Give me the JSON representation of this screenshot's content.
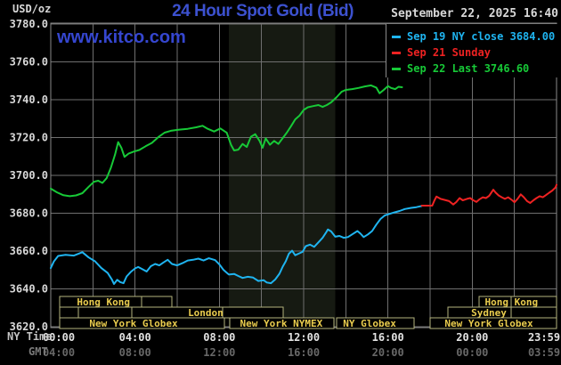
{
  "header": {
    "unit_label": "USD/oz",
    "title": "24 Hour Spot Gold (Bid)",
    "timestamp": "September 22, 2025 16:40",
    "watermark": "www.kitco.com",
    "legend": [
      {
        "label": "Sep 19 NY close 3684.00",
        "color": "#1fb4f0"
      },
      {
        "label": "Sep 21 Sunday",
        "color": "#ee2222"
      },
      {
        "label": "Sep 22 Last 3746.60",
        "color": "#17c937"
      }
    ]
  },
  "axes": {
    "y": {
      "ticks": [
        {
          "value": 3780,
          "label": "3780.0"
        },
        {
          "value": 3760,
          "label": "3760.0"
        },
        {
          "value": 3740,
          "label": "3740.0"
        },
        {
          "value": 3720,
          "label": "3720.0"
        },
        {
          "value": 3700,
          "label": "3700.0"
        },
        {
          "value": 3680,
          "label": "3680.0"
        },
        {
          "value": 3660,
          "label": "3660.0"
        },
        {
          "value": 3640,
          "label": "3640.0"
        },
        {
          "value": 3620,
          "label": "3620.0"
        }
      ],
      "color": "#d8d8d8"
    },
    "x_ny": {
      "axis_label": "NY Time",
      "color": "#e2e2e2",
      "ticks": [
        {
          "hour": 0,
          "label": "00:00"
        },
        {
          "hour": 4,
          "label": "04:00"
        },
        {
          "hour": 8,
          "label": "08:00"
        },
        {
          "hour": 12,
          "label": "12:00"
        },
        {
          "hour": 16,
          "label": "16:00"
        },
        {
          "hour": 20,
          "label": "20:00"
        },
        {
          "hour": 23.98,
          "label": "23:59"
        }
      ]
    },
    "x_gmt": {
      "axis_label": "GMT",
      "color": "#686868",
      "ticks": [
        {
          "hour": 0,
          "label": "04:00"
        },
        {
          "hour": 4,
          "label": "08:00"
        },
        {
          "hour": 8,
          "label": "12:00"
        },
        {
          "hour": 12,
          "label": "16:00"
        },
        {
          "hour": 16,
          "label": "20:00"
        },
        {
          "hour": 20,
          "label": "00:00"
        },
        {
          "hour": 23.98,
          "label": "03:59"
        }
      ]
    }
  },
  "sessions": {
    "border_color": "#b4b47e",
    "label_color": "#eacd4e",
    "rows": [
      {
        "boxes": [
          {
            "start_hour": 0.42,
            "end_hour": 5.75,
            "label": "Hong Kong",
            "label_center_hour": 2.5,
            "dividers": [
              4.31
            ]
          },
          {
            "start_hour": 20.32,
            "end_hour": 24,
            "label": "Hong Kong",
            "label_center_hour": 21.86,
            "dividers": [
              21.84
            ]
          }
        ]
      },
      {
        "boxes": [
          {
            "start_hour": 0.42,
            "end_hour": 1.31,
            "label": "",
            "label_center_hour": 0,
            "dividers": []
          },
          {
            "start_hour": 1.31,
            "end_hour": 3.84,
            "label": "",
            "label_center_hour": 0,
            "dividers": []
          },
          {
            "start_hour": 3.84,
            "end_hour": 11.03,
            "label": "London",
            "label_center_hour": 7.35,
            "dividers": [
              8.15
            ]
          },
          {
            "start_hour": 18.84,
            "end_hour": 24,
            "label": "Sydney",
            "label_center_hour": 20.79,
            "dividers": [
              21.84
            ]
          }
        ]
      },
      {
        "boxes": [
          {
            "start_hour": 0.42,
            "end_hour": 8.24,
            "label": "New York Globex",
            "label_center_hour": 3.93,
            "dividers": []
          },
          {
            "start_hour": 8.49,
            "end_hour": 13.43,
            "label": "New York NYMEX",
            "label_center_hour": 10.94,
            "dividers": []
          },
          {
            "start_hour": 13.56,
            "end_hour": 17.24,
            "label": "NY Globex",
            "label_center_hour": 15.13,
            "dividers": []
          },
          {
            "start_hour": 18.0,
            "end_hour": 24,
            "label": "New York Globex",
            "label_center_hour": 20.79,
            "dividers": []
          }
        ]
      }
    ]
  },
  "chart_data": {
    "type": "line",
    "title": "24 Hour Spot Gold (Bid)",
    "ylabel": "USD/oz",
    "x_unit": "hour of day, NY time",
    "xlim": [
      0,
      24
    ],
    "ylim": [
      3620,
      3780
    ],
    "y_gridline_step": 20,
    "x_gridline_step_hours": 2,
    "grid_color": "#6f6f6f",
    "session_shading": {
      "start_hour": 8.45,
      "end_hour": 13.5,
      "color": "#161a12"
    },
    "series": [
      {
        "name": "Sep 19 NY close 3684.00",
        "color": "#1fb4f0",
        "points": [
          [
            0,
            3651
          ],
          [
            0.15,
            3654.5
          ],
          [
            0.35,
            3657.4
          ],
          [
            0.7,
            3658
          ],
          [
            1.1,
            3657.6
          ],
          [
            1.5,
            3659.4
          ],
          [
            1.8,
            3656.6
          ],
          [
            2.1,
            3654.6
          ],
          [
            2.4,
            3651
          ],
          [
            2.7,
            3648.4
          ],
          [
            2.9,
            3645
          ],
          [
            3.0,
            3642.6
          ],
          [
            3.15,
            3644.8
          ],
          [
            3.3,
            3643.6
          ],
          [
            3.45,
            3643
          ],
          [
            3.6,
            3646.6
          ],
          [
            3.8,
            3649
          ],
          [
            4,
            3650.8
          ],
          [
            4.15,
            3651.6
          ],
          [
            4.35,
            3650.4
          ],
          [
            4.55,
            3649.2
          ],
          [
            4.75,
            3652
          ],
          [
            4.95,
            3653.2
          ],
          [
            5.15,
            3652.4
          ],
          [
            5.35,
            3654
          ],
          [
            5.55,
            3655.4
          ],
          [
            5.75,
            3653.2
          ],
          [
            6,
            3652.4
          ],
          [
            6.25,
            3653.6
          ],
          [
            6.5,
            3655
          ],
          [
            6.75,
            3655.4
          ],
          [
            7,
            3656
          ],
          [
            7.25,
            3655
          ],
          [
            7.5,
            3656.2
          ],
          [
            7.8,
            3655.2
          ],
          [
            8,
            3653
          ],
          [
            8.2,
            3650
          ],
          [
            8.45,
            3647.6
          ],
          [
            8.7,
            3647.9
          ],
          [
            8.9,
            3646.8
          ],
          [
            9.1,
            3645.8
          ],
          [
            9.35,
            3646.4
          ],
          [
            9.6,
            3646
          ],
          [
            9.85,
            3644.2
          ],
          [
            10.1,
            3644.6
          ],
          [
            10.25,
            3643.4
          ],
          [
            10.45,
            3643
          ],
          [
            10.65,
            3645
          ],
          [
            10.85,
            3648
          ],
          [
            11,
            3651.6
          ],
          [
            11.15,
            3654.6
          ],
          [
            11.3,
            3658.6
          ],
          [
            11.45,
            3660.2
          ],
          [
            11.6,
            3657.8
          ],
          [
            11.8,
            3658.8
          ],
          [
            11.95,
            3659.6
          ],
          [
            12.1,
            3662.6
          ],
          [
            12.3,
            3663.4
          ],
          [
            12.5,
            3662.2
          ],
          [
            12.7,
            3664.6
          ],
          [
            12.9,
            3667
          ],
          [
            13.05,
            3669.6
          ],
          [
            13.15,
            3671.4
          ],
          [
            13.3,
            3670.4
          ],
          [
            13.5,
            3667.6
          ],
          [
            13.7,
            3668
          ],
          [
            13.9,
            3667
          ],
          [
            14.1,
            3667.4
          ],
          [
            14.3,
            3668.8
          ],
          [
            14.55,
            3670.6
          ],
          [
            14.7,
            3669.2
          ],
          [
            14.85,
            3667.4
          ],
          [
            15.05,
            3668.8
          ],
          [
            15.25,
            3670.6
          ],
          [
            15.45,
            3674
          ],
          [
            15.65,
            3677
          ],
          [
            15.85,
            3678.8
          ],
          [
            16.05,
            3679.6
          ],
          [
            16.3,
            3680.4
          ],
          [
            16.55,
            3681.2
          ],
          [
            16.8,
            3682.2
          ],
          [
            17.1,
            3682.8
          ],
          [
            17.35,
            3683.2
          ],
          [
            17.6,
            3683.8
          ]
        ]
      },
      {
        "name": "Sep 21 Sunday",
        "color": "#ee2222",
        "points": [
          [
            17.6,
            3684
          ],
          [
            18.1,
            3684
          ],
          [
            18.2,
            3686.6
          ],
          [
            18.3,
            3688.8
          ],
          [
            18.5,
            3687.6
          ],
          [
            18.7,
            3687
          ],
          [
            18.9,
            3686.4
          ],
          [
            19.1,
            3684.6
          ],
          [
            19.25,
            3686
          ],
          [
            19.4,
            3688
          ],
          [
            19.55,
            3686.8
          ],
          [
            19.75,
            3687.6
          ],
          [
            19.9,
            3688
          ],
          [
            20.05,
            3686.8
          ],
          [
            20.2,
            3686
          ],
          [
            20.35,
            3687.4
          ],
          [
            20.5,
            3688.4
          ],
          [
            20.65,
            3688
          ],
          [
            20.8,
            3689.2
          ],
          [
            21,
            3692.4
          ],
          [
            21.1,
            3691
          ],
          [
            21.25,
            3689.4
          ],
          [
            21.4,
            3688.4
          ],
          [
            21.55,
            3687.6
          ],
          [
            21.7,
            3688.4
          ],
          [
            21.9,
            3686.8
          ],
          [
            22,
            3685.8
          ],
          [
            22.15,
            3687.6
          ],
          [
            22.3,
            3690
          ],
          [
            22.45,
            3688.4
          ],
          [
            22.6,
            3686.4
          ],
          [
            22.75,
            3685.4
          ],
          [
            22.9,
            3686.8
          ],
          [
            23.05,
            3688
          ],
          [
            23.2,
            3689
          ],
          [
            23.35,
            3688.4
          ],
          [
            23.5,
            3689.6
          ],
          [
            23.65,
            3690.8
          ],
          [
            23.8,
            3692
          ],
          [
            23.95,
            3693.6
          ],
          [
            24,
            3695
          ]
        ]
      },
      {
        "name": "Sep 22 Last 3746.60",
        "color": "#17c937",
        "points": [
          [
            0,
            3693
          ],
          [
            0.3,
            3691
          ],
          [
            0.6,
            3689.5
          ],
          [
            0.9,
            3689
          ],
          [
            1.2,
            3689.4
          ],
          [
            1.5,
            3690.6
          ],
          [
            1.8,
            3694
          ],
          [
            2.05,
            3696.6
          ],
          [
            2.25,
            3697.2
          ],
          [
            2.45,
            3696
          ],
          [
            2.65,
            3698.5
          ],
          [
            2.85,
            3704
          ],
          [
            3.05,
            3711
          ],
          [
            3.2,
            3717.6
          ],
          [
            3.35,
            3714.6
          ],
          [
            3.5,
            3709.8
          ],
          [
            3.7,
            3711.6
          ],
          [
            3.95,
            3712.6
          ],
          [
            4.2,
            3713.4
          ],
          [
            4.5,
            3715.4
          ],
          [
            4.8,
            3717.2
          ],
          [
            5.1,
            3720.2
          ],
          [
            5.4,
            3722.6
          ],
          [
            5.7,
            3723.6
          ],
          [
            6.1,
            3724.2
          ],
          [
            6.5,
            3724.6
          ],
          [
            6.9,
            3725.4
          ],
          [
            7.2,
            3726.2
          ],
          [
            7.45,
            3724.6
          ],
          [
            7.75,
            3723.2
          ],
          [
            8.05,
            3724.8
          ],
          [
            8.35,
            3722.6
          ],
          [
            8.55,
            3716.2
          ],
          [
            8.7,
            3713.2
          ],
          [
            8.9,
            3713.6
          ],
          [
            9.1,
            3716.6
          ],
          [
            9.3,
            3715
          ],
          [
            9.5,
            3720.4
          ],
          [
            9.7,
            3721.8
          ],
          [
            9.9,
            3718.4
          ],
          [
            10.05,
            3714.6
          ],
          [
            10.2,
            3719.6
          ],
          [
            10.4,
            3716.2
          ],
          [
            10.6,
            3718.2
          ],
          [
            10.8,
            3716.6
          ],
          [
            11,
            3719.6
          ],
          [
            11.2,
            3722.6
          ],
          [
            11.4,
            3726
          ],
          [
            11.6,
            3729.6
          ],
          [
            11.8,
            3731.6
          ],
          [
            12,
            3734.6
          ],
          [
            12.2,
            3736
          ],
          [
            12.45,
            3736.6
          ],
          [
            12.7,
            3737.2
          ],
          [
            12.9,
            3736.2
          ],
          [
            13.1,
            3737.2
          ],
          [
            13.3,
            3738.6
          ],
          [
            13.55,
            3741.2
          ],
          [
            13.8,
            3744.2
          ],
          [
            14,
            3745.2
          ],
          [
            14.3,
            3745.6
          ],
          [
            14.6,
            3746.2
          ],
          [
            14.9,
            3747
          ],
          [
            15.2,
            3747.6
          ],
          [
            15.45,
            3746.4
          ],
          [
            15.6,
            3743.4
          ],
          [
            15.8,
            3745.2
          ],
          [
            16,
            3747.2
          ],
          [
            16.15,
            3746.2
          ],
          [
            16.35,
            3745.6
          ],
          [
            16.5,
            3746.8
          ],
          [
            16.67,
            3746.6
          ]
        ]
      }
    ]
  }
}
